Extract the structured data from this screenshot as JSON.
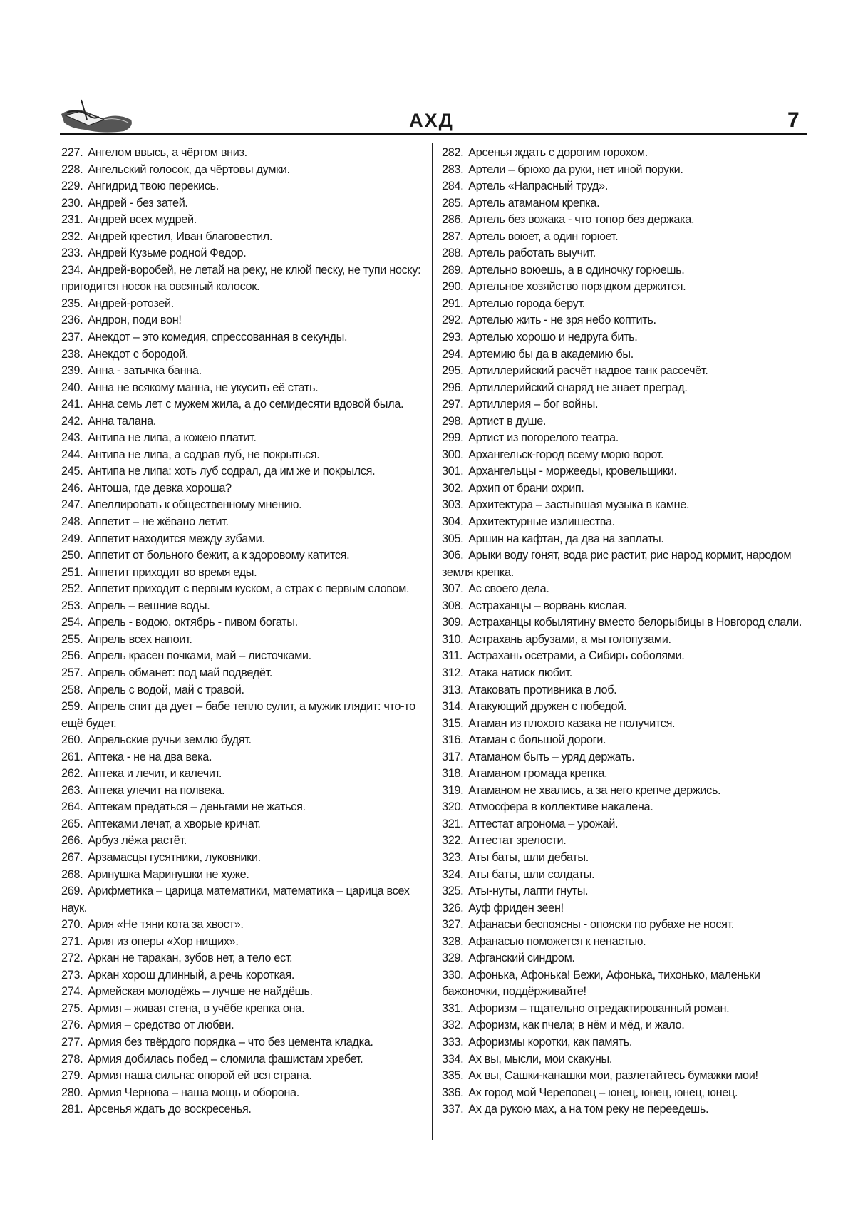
{
  "header": {
    "title": "АХД",
    "page_number": "7",
    "logo": "hand-writing-with-quill"
  },
  "left_column": [
    {
      "n": "227.",
      "t": "Ангелом ввысь, а чёртом вниз."
    },
    {
      "n": "228.",
      "t": "Ангельский голосок, да чёртовы думки."
    },
    {
      "n": "229.",
      "t": "Ангидрид твою перекись."
    },
    {
      "n": "230.",
      "t": "Андрей - без затей."
    },
    {
      "n": "231.",
      "t": "Андрей всех мудрей."
    },
    {
      "n": "232.",
      "t": "Андрей крестил, Иван благовестил."
    },
    {
      "n": "233.",
      "t": "Андрей Кузьме родной Федор."
    },
    {
      "n": "234.",
      "t": "Андрей-воробей, не летай на реку, не клюй песку, не тупи носку: пригодится носок на овсяный колосок."
    },
    {
      "n": "235.",
      "t": "Андрей-ротозей."
    },
    {
      "n": "236.",
      "t": "Андрон, поди вон!"
    },
    {
      "n": "237.",
      "t": "Анекдот – это комедия, спрессованная в секунды."
    },
    {
      "n": "238.",
      "t": "Анекдот с бородой."
    },
    {
      "n": "239.",
      "t": "Анна - затычка банна."
    },
    {
      "n": "240.",
      "t": "Анна не всякому манна, не укусить её стать."
    },
    {
      "n": "241.",
      "t": "Анна семь лет с мужем жила, а до семидесяти вдовой была."
    },
    {
      "n": "242.",
      "t": "Анна талана."
    },
    {
      "n": "243.",
      "t": "Антипа не липа, а кожею платит."
    },
    {
      "n": "244.",
      "t": "Антипа не липа, а содрав луб, не покрыться."
    },
    {
      "n": "245.",
      "t": "Антипа не липа: хоть луб содрал, да им же и покрылся."
    },
    {
      "n": "246.",
      "t": "Антоша, где девка хороша?"
    },
    {
      "n": "247.",
      "t": "Апеллировать к общественному мнению."
    },
    {
      "n": "248.",
      "t": "Аппетит – не жёвано летит."
    },
    {
      "n": "249.",
      "t": "Аппетит находится между зубами."
    },
    {
      "n": "250.",
      "t": "Аппетит от больного бежит, а к здоровому катится."
    },
    {
      "n": "251.",
      "t": "Аппетит приходит во время еды."
    },
    {
      "n": "252.",
      "t": "Аппетит приходит с первым куском, а страх с первым словом."
    },
    {
      "n": "253.",
      "t": "Апрель – вешние воды."
    },
    {
      "n": "254.",
      "t": "Апрель - водою, октябрь - пивом богаты."
    },
    {
      "n": "255.",
      "t": "Апрель всех напоит."
    },
    {
      "n": "256.",
      "t": "Апрель красен почками, май – листочками."
    },
    {
      "n": "257.",
      "t": "Апрель обманет: под май подведёт."
    },
    {
      "n": "258.",
      "t": "Апрель с водой, май с травой."
    },
    {
      "n": "259.",
      "t": "Апрель спит да дует – бабе тепло сулит, а мужик глядит: что-то ещё будет."
    },
    {
      "n": "260.",
      "t": "Апрельские ручьи землю будят."
    },
    {
      "n": "261.",
      "t": "Аптека - не на два века."
    },
    {
      "n": "262.",
      "t": "Аптека и лечит, и калечит."
    },
    {
      "n": "263.",
      "t": "Аптека улечит на полвека."
    },
    {
      "n": "264.",
      "t": "Аптекам предаться – деньгами не жаться."
    },
    {
      "n": "265.",
      "t": "Аптеками лечат, а хворые кричат."
    },
    {
      "n": "266.",
      "t": "Арбуз лёжа растёт."
    },
    {
      "n": "267.",
      "t": "Арзамасцы гусятники, луковники."
    },
    {
      "n": "268.",
      "t": "Аринушка Маринушки не хуже."
    },
    {
      "n": "269.",
      "t": "Арифметика – царица математики, математика – царица всех наук."
    },
    {
      "n": "270.",
      "t": "Ария «Не тяни кота за хвост»."
    },
    {
      "n": "271.",
      "t": "Ария из оперы «Хор нищих»."
    },
    {
      "n": "272.",
      "t": "Аркан не таракан, зубов нет, а тело ест."
    },
    {
      "n": "273.",
      "t": "Аркан хорош длинный, а речь короткая."
    },
    {
      "n": "274.",
      "t": "Армейская молодёжь – лучше не найдёшь."
    },
    {
      "n": "275.",
      "t": "Армия – живая стена, в учёбе крепка она."
    },
    {
      "n": "276.",
      "t": "Армия – средство от любви."
    },
    {
      "n": "277.",
      "t": "Армия без твёрдого порядка – что без цемента кладка."
    },
    {
      "n": "278.",
      "t": "Армия добилась побед – сломила фашистам хребет."
    },
    {
      "n": "279.",
      "t": "Армия наша сильна: опорой ей вся страна."
    },
    {
      "n": "280.",
      "t": "Армия Чернова – наша мощь и оборона."
    },
    {
      "n": "281.",
      "t": "Арсенья ждать до воскресенья."
    }
  ],
  "right_column": [
    {
      "n": "282.",
      "t": "Арсенья ждать с дорогим горохом."
    },
    {
      "n": "283.",
      "t": "Артели – брюхо да руки, нет иной поруки."
    },
    {
      "n": "284.",
      "t": "Артель «Напрасный труд»."
    },
    {
      "n": "285.",
      "t": "Артель атаманом крепка."
    },
    {
      "n": "286.",
      "t": "Артель без вожака - что топор без держака."
    },
    {
      "n": "287.",
      "t": "Артель воюет, а один горюет."
    },
    {
      "n": "288.",
      "t": "Артель работать выучит."
    },
    {
      "n": "289.",
      "t": "Артельно воюешь, а в одиночку горюешь."
    },
    {
      "n": "290.",
      "t": "Артельное хозяйство порядком держится."
    },
    {
      "n": "291.",
      "t": "Артелью города берут."
    },
    {
      "n": "292.",
      "t": "Артелью жить - не зря небо коптить."
    },
    {
      "n": "293.",
      "t": "Артелью хорошо и недруга бить."
    },
    {
      "n": "294.",
      "t": "Артемию бы да в академию бы."
    },
    {
      "n": "295.",
      "t": "Артиллерийский расчёт надвое танк рассечёт."
    },
    {
      "n": "296.",
      "t": "Артиллерийский снаряд не знает преград."
    },
    {
      "n": "297.",
      "t": "Артиллерия – бог войны."
    },
    {
      "n": "298.",
      "t": "Артист в душе."
    },
    {
      "n": "299.",
      "t": "Артист из погорелого театра."
    },
    {
      "n": "300.",
      "t": "Архангельск-город всему морю ворот."
    },
    {
      "n": "301.",
      "t": "Архангельцы - моржееды, кровельщики."
    },
    {
      "n": "302.",
      "t": "Архип от брани охрип."
    },
    {
      "n": "303.",
      "t": "Архитектура – застывшая музыка в камне."
    },
    {
      "n": "304.",
      "t": "Архитектурные излишества."
    },
    {
      "n": "305.",
      "t": "Аршин на кафтан, да два на заплаты."
    },
    {
      "n": "306.",
      "t": "Арыки воду гонят, вода рис растит, рис народ кормит, народом земля крепка."
    },
    {
      "n": "307.",
      "t": "Ас своего дела."
    },
    {
      "n": "308.",
      "t": "Астраханцы – ворвань кислая."
    },
    {
      "n": "309.",
      "t": "Астраханцы кобылятину вместо белорыбицы в Новгород слали."
    },
    {
      "n": "310.",
      "t": "Астрахань арбузами, а мы голопузами."
    },
    {
      "n": "311.",
      "t": "Астрахань осетрами, а Сибирь соболями."
    },
    {
      "n": "312.",
      "t": "Атака натиск любит."
    },
    {
      "n": "313.",
      "t": "Атаковать противника в лоб."
    },
    {
      "n": "314.",
      "t": "Атакующий дружен с победой."
    },
    {
      "n": "315.",
      "t": "Атаман из плохого казака не получится."
    },
    {
      "n": "316.",
      "t": "Атаман с большой дороги."
    },
    {
      "n": "317.",
      "t": "Атаманом быть – уряд держать."
    },
    {
      "n": "318.",
      "t": "Атаманом громада крепка."
    },
    {
      "n": "319.",
      "t": "Атаманом не хвались, а за него крепче держись."
    },
    {
      "n": "320.",
      "t": "Атмосфера в коллективе накалена."
    },
    {
      "n": "321.",
      "t": "Аттестат агронома – урожай."
    },
    {
      "n": "322.",
      "t": "Аттестат зрелости."
    },
    {
      "n": "323.",
      "t": "Аты баты, шли дебаты."
    },
    {
      "n": "324.",
      "t": "Аты баты, шли солдаты."
    },
    {
      "n": "325.",
      "t": "Аты-нуты, лапти гнуты."
    },
    {
      "n": "326.",
      "t": "Ауф фриден зеен!"
    },
    {
      "n": "327.",
      "t": "Афанасьи беспоясны - опояски по рубахе не носят."
    },
    {
      "n": "328.",
      "t": "Афанасью поможется к ненастью."
    },
    {
      "n": "329.",
      "t": "Афганский синдром."
    },
    {
      "n": "330.",
      "t": "Афонька, Афонька! Бежи, Афонька, тихонько, маленьки бажоночки, поддёрживайте!"
    },
    {
      "n": "331.",
      "t": "Афоризм – тщательно отредактированный роман."
    },
    {
      "n": "332.",
      "t": "Афоризм, как пчела; в нём и мёд, и жало."
    },
    {
      "n": "333.",
      "t": "Афоризмы коротки, как память."
    },
    {
      "n": "334.",
      "t": "Ах вы, мысли, мои скакуны."
    },
    {
      "n": "335.",
      "t": "Ах вы, Сашки-канашки мои, разлетайтесь бумажки мои!"
    },
    {
      "n": "336.",
      "t": "Ах город мой Череповец – юнец, юнец, юнец, юнец."
    },
    {
      "n": "337.",
      "t": "Ах да рукою мах, а на том реку не переедешь."
    }
  ]
}
